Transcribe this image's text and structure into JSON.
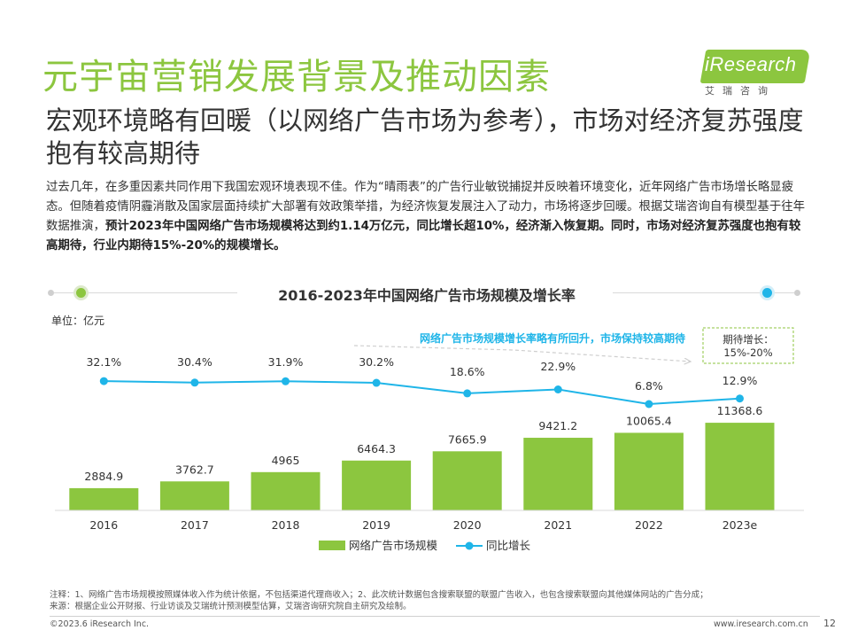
{
  "header": {
    "title": "元宇宙营销发展背景及推动因素",
    "logo_text": "iResearch",
    "logo_sub": "艾瑞咨询"
  },
  "subtitle": "宏观环境略有回暖（以网络广告市场为参考），市场对经济复苏强度抱有较高期待",
  "paragraph": {
    "normal": "过去几年，在多重因素共同作用下我国宏观环境表现不佳。作为“晴雨表”的广告行业敏锐捕捉并反映着环境变化，近年网络广告市场增长略显疲态。但随着疫情阴霾消散及国家层面持续扩大部署有效政策举措，为经济恢复发展注入了动力，市场将逐步回暖。根据艾瑞咨询自有模型基于往年数据推演，",
    "bold": "预计2023年中国网络广告市场规模将达到约1.14万亿元，同比增长超10%，经济渐入恢复期。同时，市场对经济复苏强度也抱有较高期待，行业内期待15%-20%的规模增长。"
  },
  "chart_data": {
    "type": "bar",
    "title": "2016-2023年中国网络广告市场规模及增长率",
    "unit_label": "单位：亿元",
    "categories": [
      "2016",
      "2017",
      "2018",
      "2019",
      "2020",
      "2021",
      "2022",
      "2023e"
    ],
    "series": [
      {
        "name": "网络广告市场规模",
        "type": "bar",
        "values": [
          2884.9,
          3762.7,
          4965,
          6464.3,
          7665.9,
          9421.2,
          10065.4,
          11368.6
        ],
        "labels": [
          "2884.9",
          "3762.7",
          "4965",
          "6464.3",
          "7665.9",
          "9421.2",
          "10065.4",
          "11368.6"
        ],
        "color": "#8cc63f"
      },
      {
        "name": "同比增长",
        "type": "line",
        "values": [
          32.1,
          30.4,
          31.9,
          30.2,
          18.6,
          22.9,
          6.8,
          12.9
        ],
        "labels": [
          "32.1%",
          "30.4%",
          "31.9%",
          "30.2%",
          "18.6%",
          "22.9%",
          "6.8%",
          "12.9%"
        ],
        "color": "#1fb5e8"
      }
    ],
    "annotation": "网络广告市场规模增长率略有所回升，市场保持较高期待",
    "expectation_box": [
      "期待增长：",
      "15%-20%"
    ],
    "legend_position": "bottom"
  },
  "footnote": {
    "note": "注释：1、网络广告市场规模按照媒体收入作为统计依据，不包括渠道代理商收入；2、此次统计数据包含搜索联盟的联盟广告收入，也包含搜索联盟向其他媒体网站的广告分成；",
    "source": "来源：根据企业公开财报、行业访谈及艾瑞统计预测模型估算，艾瑞咨询研究院自主研究及绘制。"
  },
  "footer": {
    "copyright": "©2023.6 iResearch Inc.",
    "site": "www.iresearch.com.cn",
    "page": "12"
  },
  "colors": {
    "brand_green": "#8cc63f",
    "line_blue": "#1fb5e8",
    "annotation_blue": "#1fb5e8"
  }
}
